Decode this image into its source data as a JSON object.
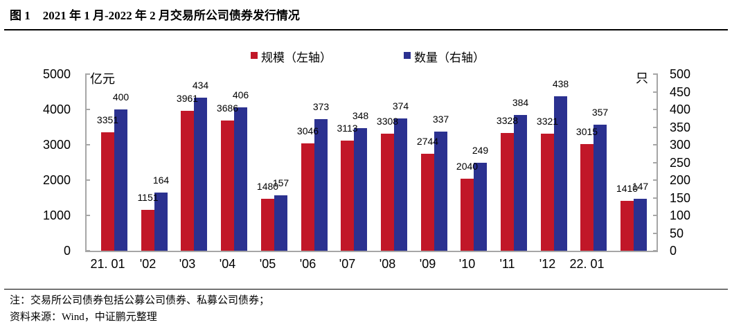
{
  "header": {
    "figure_label": "图 1",
    "title": "2021 年 1 月-2022 年 2 月交易所公司债券发行情况"
  },
  "notes": {
    "note": "注：交易所公司债券包括公募公司债券、私募公司债券；",
    "source": "资料来源：Wind，中证鹏元整理"
  },
  "chart_data": {
    "type": "bar",
    "title": "2021 年 1 月-2022 年 2 月交易所公司债券发行情况",
    "categories": [
      "21. 01",
      "'02",
      "'03",
      "'04",
      "'05",
      "'06",
      "'07",
      "'08",
      "'09",
      "'10",
      "'11",
      "'12",
      "22. 01",
      ""
    ],
    "series": [
      {
        "name": "规模（左轴）",
        "axis": "left",
        "color": "#c11728",
        "values": [
          3351,
          1151,
          3961,
          3686,
          1480,
          3046,
          3113,
          3308,
          2744,
          2040,
          3328,
          3321,
          3015,
          1410
        ]
      },
      {
        "name": "数量（右轴）",
        "axis": "right",
        "color": "#2b3190",
        "values": [
          400,
          164,
          434,
          406,
          157,
          373,
          348,
          374,
          337,
          249,
          384,
          438,
          357,
          147
        ]
      }
    ],
    "left_axis": {
      "unit": "亿元",
      "min": 0,
      "max": 5000,
      "step": 1000
    },
    "right_axis": {
      "unit": "只",
      "min": 0,
      "max": 500,
      "step": 50
    },
    "grid": false,
    "legend_position": "top",
    "data_labels": true,
    "axis_color": "#a6a6a6"
  }
}
